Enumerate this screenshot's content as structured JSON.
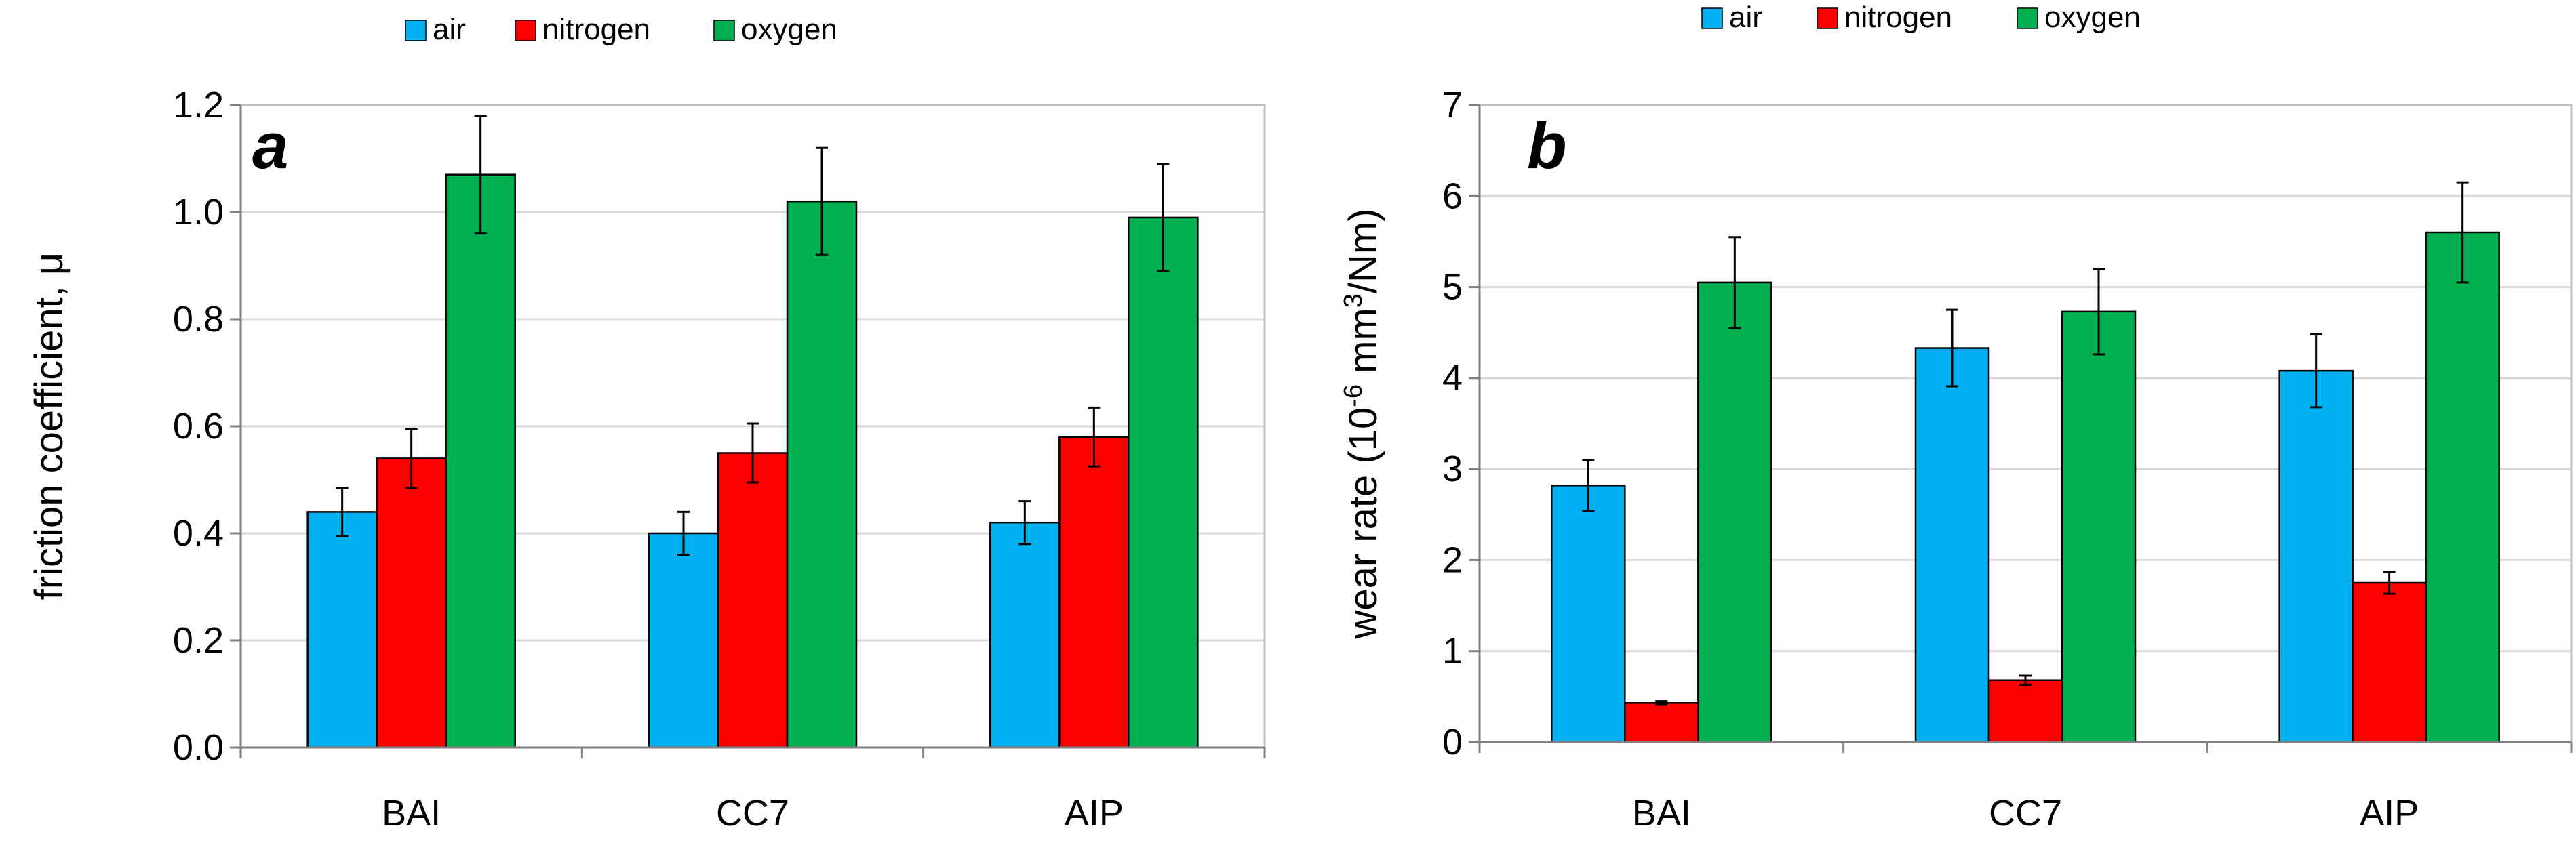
{
  "colors": {
    "air": "#00b0f0",
    "nitrogen": "#ff0000",
    "oxygen": "#00b050"
  },
  "chart_data": [
    {
      "type": "bar",
      "panel_label": "a",
      "categories": [
        "BAI",
        "CC7",
        "AIP"
      ],
      "series": [
        {
          "name": "air",
          "values": [
            0.44,
            0.4,
            0.42
          ],
          "errors": [
            0.045,
            0.04,
            0.04
          ]
        },
        {
          "name": "nitrogen",
          "values": [
            0.54,
            0.55,
            0.58
          ],
          "errors": [
            0.055,
            0.055,
            0.055
          ]
        },
        {
          "name": "oxygen",
          "values": [
            1.07,
            1.02,
            0.99
          ],
          "errors": [
            0.11,
            0.1,
            0.1
          ]
        }
      ],
      "ylabel": "friction coefficient, μ",
      "ylim": [
        0,
        1.2
      ],
      "yticks": [
        "0.0",
        "0.2",
        "0.4",
        "0.6",
        "0.8",
        "1.0",
        "1.2"
      ],
      "grid": true,
      "legend": [
        "air",
        "nitrogen",
        "oxygen"
      ]
    },
    {
      "type": "bar",
      "panel_label": "b",
      "categories": [
        "BAI",
        "CC7",
        "AIP"
      ],
      "series": [
        {
          "name": "air",
          "values": [
            2.82,
            4.33,
            4.08
          ],
          "errors": [
            0.28,
            0.42,
            0.4
          ]
        },
        {
          "name": "nitrogen",
          "values": [
            0.43,
            0.68,
            1.75
          ],
          "errors": [
            0.02,
            0.05,
            0.12
          ]
        },
        {
          "name": "oxygen",
          "values": [
            5.05,
            4.73,
            5.6
          ],
          "errors": [
            0.5,
            0.47,
            0.55
          ]
        }
      ],
      "ylabel_prefix": "wear rate (10",
      "ylabel_exp1": "-6",
      "ylabel_mid": " mm",
      "ylabel_exp2": "3",
      "ylabel_suffix": "/Nm)",
      "ylim": [
        0,
        7
      ],
      "yticks": [
        "0",
        "1",
        "2",
        "3",
        "4",
        "5",
        "6",
        "7"
      ],
      "grid": true,
      "legend": [
        "air",
        "nitrogen",
        "oxygen"
      ]
    }
  ]
}
